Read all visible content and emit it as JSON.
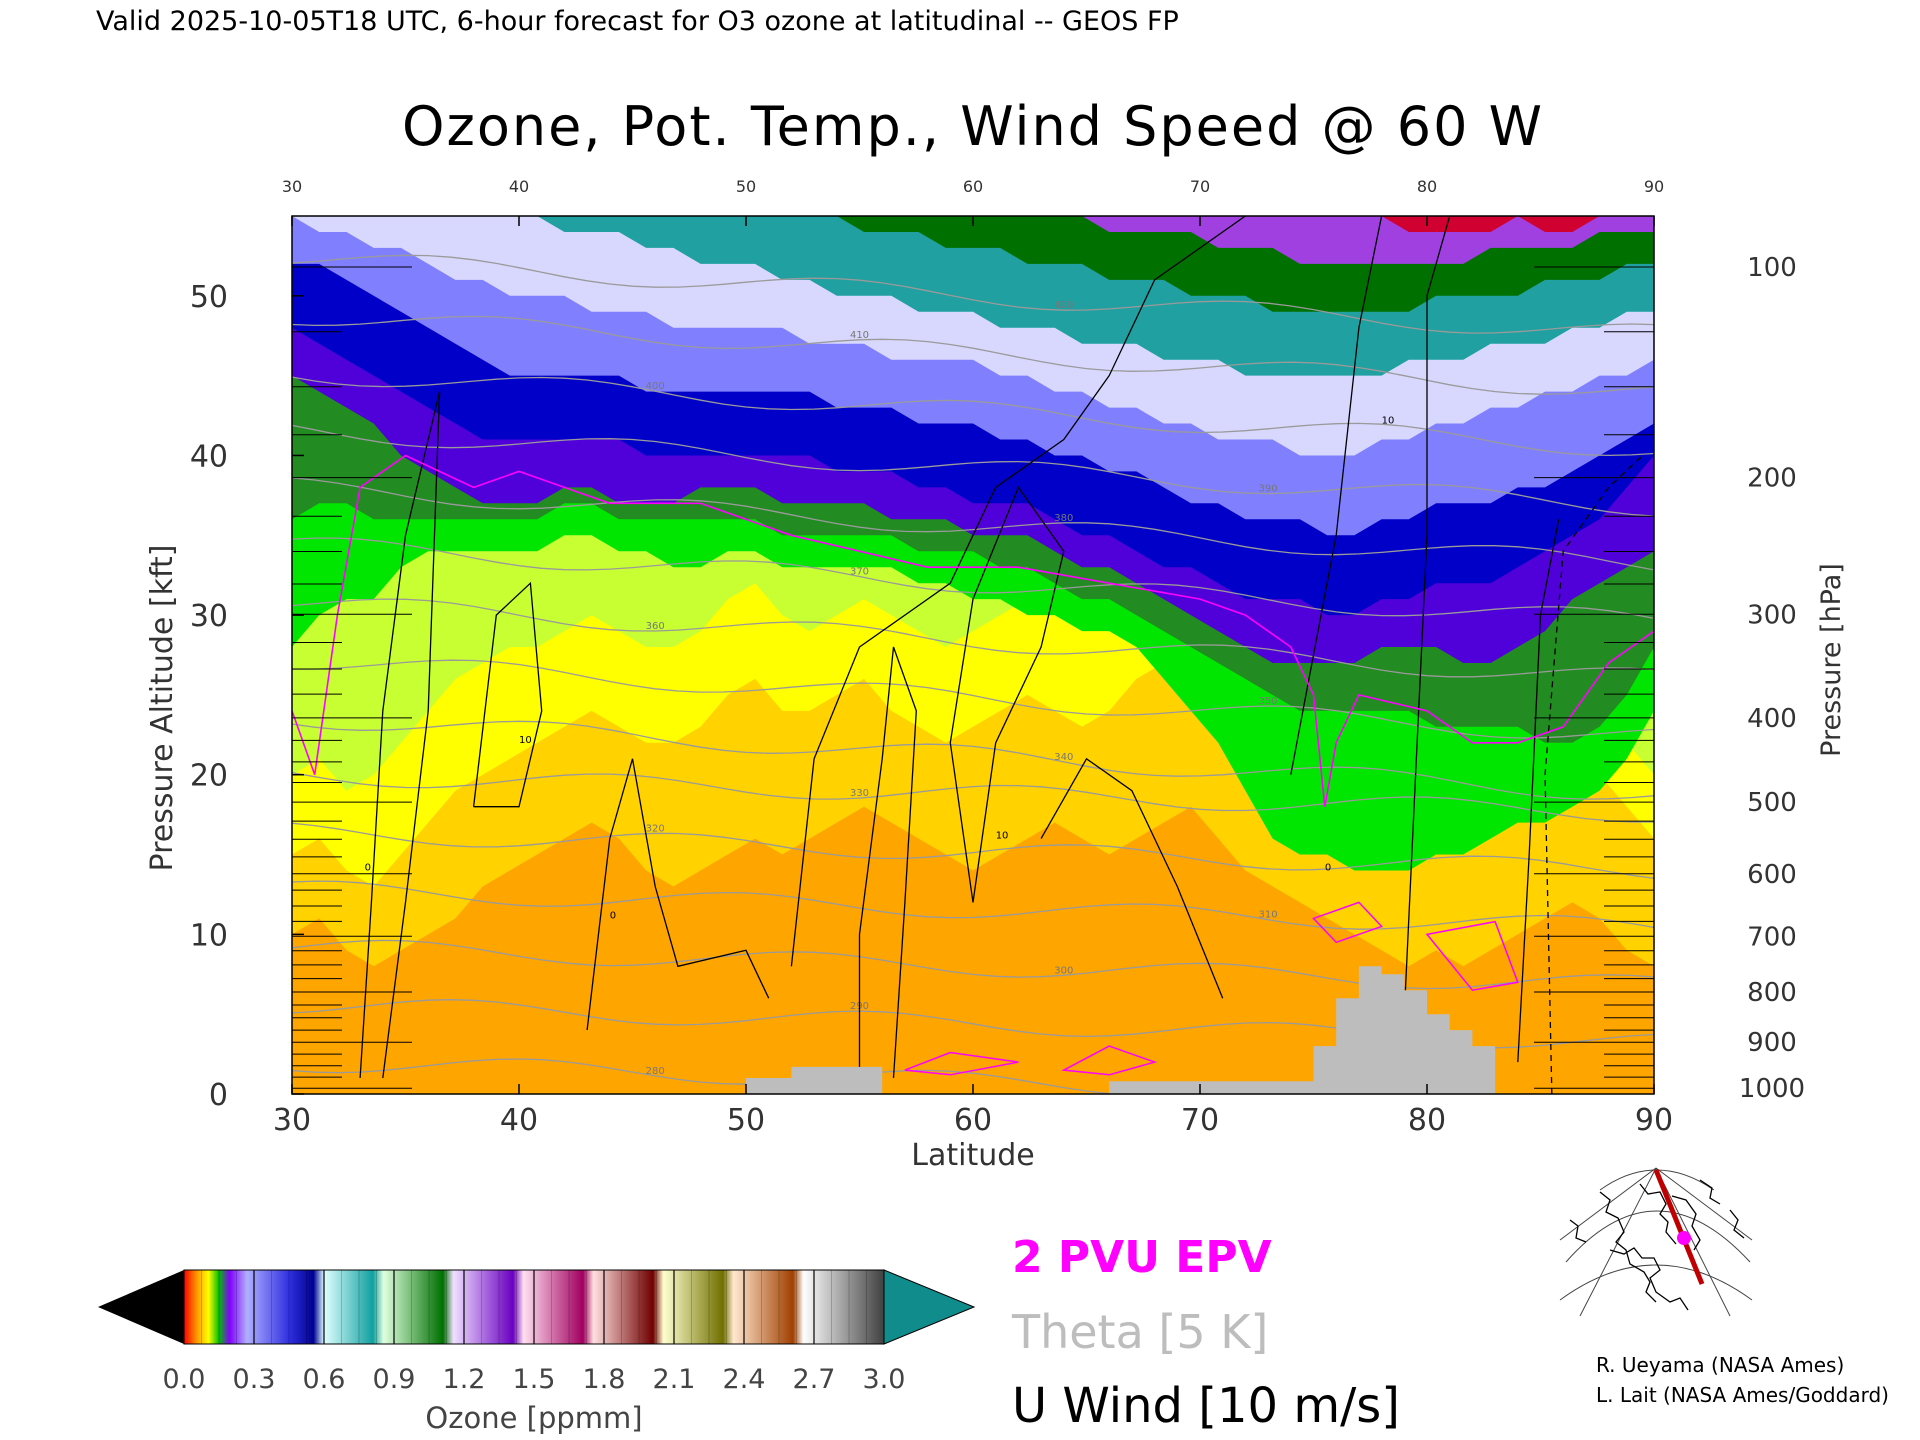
{
  "header": {
    "valid_text": "Valid 2025-10-05T18 UTC, 6-hour forecast for O3 ozone at latitudinal -- GEOS FP"
  },
  "chart_data": {
    "type": "heatmap",
    "title": "Ozone, Pot. Temp., Wind Speed @ 60 W",
    "xlabel": "Latitude",
    "ylabel": "Pressure Altitude [kft]",
    "y2label": "Pressure [hPa]",
    "xlim": [
      30,
      90
    ],
    "ylim": [
      0,
      55
    ],
    "x_ticks": [
      30,
      40,
      50,
      60,
      70,
      80,
      90
    ],
    "top_x_ticks": [
      30,
      40,
      50,
      60,
      70,
      80,
      90
    ],
    "y_ticks": [
      0,
      10,
      20,
      30,
      40,
      50
    ],
    "pressure_ticks": [
      100,
      200,
      300,
      400,
      500,
      600,
      700,
      800,
      900,
      1000
    ],
    "ozone_colorbar": {
      "label": "Ozone [ppmm]",
      "ticks": [
        "0.0",
        "0.3",
        "0.6",
        "0.9",
        "1.2",
        "1.5",
        "1.8",
        "2.1",
        "2.4",
        "2.7",
        "3.0"
      ],
      "range": [
        0.0,
        3.0
      ]
    },
    "theta_labels": [
      "280",
      "290",
      "300",
      "310",
      "320",
      "330",
      "340",
      "350",
      "360",
      "370",
      "380",
      "390",
      "400",
      "410",
      "420"
    ],
    "wind_labels": [
      "0",
      "10"
    ],
    "ozone_bands": [
      {
        "ozone_ppmm": 0.08,
        "color": "#ffa500",
        "profile": [
          4,
          5,
          3,
          4,
          5,
          6,
          4,
          3,
          4,
          5,
          4,
          3,
          4,
          5,
          6,
          5,
          4,
          5,
          6,
          7,
          6,
          5,
          4,
          3,
          4,
          5,
          6,
          5,
          6,
          7,
          8,
          9,
          10,
          11,
          12,
          13,
          11,
          9,
          7,
          6,
          5,
          4,
          3,
          4,
          3,
          4,
          3,
          2,
          3,
          4,
          3
        ]
      },
      {
        "ozone_ppmm": 0.05,
        "color": "#ffd200",
        "profile": [
          10,
          11,
          9,
          8,
          9,
          10,
          11,
          13,
          14,
          15,
          16,
          17,
          16,
          14,
          13,
          14,
          15,
          16,
          15,
          16,
          17,
          18,
          17,
          16,
          15,
          14,
          15,
          16,
          17,
          16,
          15,
          16,
          17,
          18,
          16,
          14,
          13,
          12,
          11,
          10,
          9,
          8,
          9,
          8,
          9,
          10,
          11,
          12,
          11,
          9,
          8
        ]
      },
      {
        "ozone_ppmm": 0.035,
        "color": "#ffff00",
        "profile": [
          15,
          16,
          14,
          13,
          15,
          17,
          19,
          20,
          21,
          22,
          23,
          24,
          23,
          22,
          22,
          23,
          25,
          26,
          24,
          24,
          25,
          26,
          24,
          23,
          22,
          23,
          24,
          25,
          24,
          23,
          24,
          26,
          27,
          26,
          24,
          22,
          20,
          18,
          17,
          16,
          15,
          14,
          16,
          17,
          18,
          20,
          21,
          22,
          20,
          18,
          16
        ]
      },
      {
        "ozone_ppmm": 0.02,
        "color": "#c8ff32",
        "profile": [
          20,
          21,
          19,
          20,
          22,
          24,
          26,
          27,
          28,
          28,
          29,
          30,
          29,
          28,
          28,
          29,
          31,
          32,
          30,
          29,
          30,
          31,
          30,
          29,
          28,
          29,
          30,
          31,
          30,
          29,
          30,
          31,
          32,
          31,
          29,
          27,
          25,
          22,
          21,
          20,
          19,
          18,
          20,
          21,
          22,
          24,
          25,
          26,
          24,
          22,
          20
        ]
      },
      {
        "ozone_ppmm": 0.015,
        "color": "#00e600",
        "profile": [
          28,
          30,
          31,
          31,
          33,
          34,
          34,
          34,
          34,
          34,
          35,
          35,
          34,
          34,
          33,
          33,
          34,
          34,
          33,
          33,
          33,
          33,
          33,
          32,
          32,
          31,
          31,
          30,
          30,
          29,
          29,
          28,
          26,
          24,
          22,
          19,
          16,
          15,
          15,
          14,
          14,
          14,
          15,
          15,
          16,
          17,
          17,
          18,
          19,
          21,
          24
        ]
      },
      {
        "ozone_ppmm": 0.012,
        "color": "#228b22",
        "profile": [
          36,
          37,
          37,
          36,
          36,
          36,
          36,
          36,
          36,
          36,
          37,
          37,
          36,
          36,
          36,
          36,
          36,
          36,
          35,
          35,
          35,
          35,
          35,
          34,
          34,
          34,
          33,
          33,
          32,
          31,
          31,
          30,
          29,
          28,
          27,
          26,
          25,
          24,
          24,
          24,
          24,
          24,
          23,
          23,
          23,
          23,
          22,
          22,
          23,
          25,
          28
        ]
      },
      {
        "ozone_ppmm": 0.1,
        "color": "#5000d8",
        "profile": [
          45,
          44,
          43,
          42,
          40,
          39,
          38,
          37,
          37,
          37,
          38,
          38,
          37,
          37,
          37,
          38,
          38,
          38,
          37,
          37,
          37,
          37,
          36,
          36,
          36,
          35,
          35,
          35,
          34,
          33,
          33,
          32,
          31,
          30,
          29,
          28,
          27,
          27,
          27,
          27,
          28,
          28,
          28,
          27,
          27,
          28,
          29,
          31,
          32,
          33,
          34
        ]
      },
      {
        "ozone_ppmm": 0.25,
        "color": "#0000c8",
        "profile": [
          48,
          47,
          46,
          45,
          44,
          43,
          42,
          41,
          41,
          41,
          41,
          41,
          41,
          40,
          40,
          40,
          40,
          40,
          40,
          40,
          39,
          39,
          39,
          38,
          38,
          37,
          37,
          37,
          36,
          35,
          35,
          34,
          33,
          33,
          32,
          31,
          31,
          31,
          30,
          30,
          31,
          31,
          32,
          32,
          32,
          33,
          34,
          35,
          36,
          38,
          40
        ]
      },
      {
        "ozone_ppmm": 0.4,
        "color": "#8080ff",
        "profile": [
          52,
          52,
          51,
          50,
          49,
          48,
          47,
          46,
          45,
          45,
          45,
          45,
          45,
          44,
          44,
          44,
          44,
          44,
          44,
          44,
          43,
          43,
          43,
          42,
          42,
          42,
          41,
          41,
          40,
          40,
          39,
          39,
          38,
          37,
          37,
          36,
          36,
          36,
          35,
          35,
          36,
          36,
          37,
          37,
          37,
          38,
          38,
          39,
          40,
          41,
          42
        ]
      },
      {
        "ozone_ppmm": 0.55,
        "color": "#d8d8ff",
        "profile": [
          55,
          54,
          54,
          53,
          53,
          52,
          51,
          51,
          50,
          50,
          50,
          49,
          49,
          49,
          48,
          48,
          48,
          48,
          48,
          47,
          47,
          47,
          46,
          46,
          46,
          46,
          45,
          45,
          44,
          44,
          43,
          43,
          42,
          42,
          41,
          41,
          41,
          40,
          40,
          40,
          41,
          41,
          42,
          42,
          43,
          43,
          44,
          44,
          45,
          45,
          46
        ]
      },
      {
        "ozone_ppmm": 0.75,
        "color": "#20a0a0",
        "profile": [
          55,
          55,
          55,
          55,
          55,
          55,
          55,
          55,
          55,
          55,
          54,
          54,
          54,
          53,
          53,
          52,
          52,
          52,
          51,
          51,
          50,
          50,
          50,
          49,
          49,
          49,
          48,
          48,
          48,
          47,
          47,
          47,
          46,
          46,
          46,
          45,
          45,
          45,
          45,
          45,
          45,
          46,
          46,
          46,
          47,
          47,
          47,
          48,
          48,
          49,
          49
        ]
      },
      {
        "ozone_ppmm": 1.0,
        "color": "#007000",
        "profile": [
          55,
          55,
          55,
          55,
          55,
          55,
          55,
          55,
          55,
          55,
          55,
          55,
          55,
          55,
          55,
          55,
          55,
          55,
          55,
          55,
          55,
          54,
          54,
          54,
          53,
          53,
          53,
          52,
          52,
          52,
          51,
          51,
          51,
          50,
          50,
          50,
          49,
          49,
          49,
          49,
          49,
          49,
          50,
          50,
          50,
          50,
          51,
          51,
          51,
          52,
          52
        ]
      },
      {
        "ozone_ppmm": 1.4,
        "color": "#a040e0",
        "profile": [
          55,
          55,
          55,
          55,
          55,
          55,
          55,
          55,
          55,
          55,
          55,
          55,
          55,
          55,
          55,
          55,
          55,
          55,
          55,
          55,
          55,
          55,
          55,
          55,
          55,
          55,
          55,
          55,
          55,
          55,
          54,
          54,
          54,
          54,
          53,
          53,
          53,
          52,
          52,
          52,
          52,
          52,
          52,
          52,
          53,
          53,
          53,
          53,
          54,
          54,
          54
        ]
      },
      {
        "ozone_ppmm": 1.9,
        "color": "#d00030",
        "profile": [
          55,
          55,
          55,
          55,
          55,
          55,
          55,
          55,
          55,
          55,
          55,
          55,
          55,
          55,
          55,
          55,
          55,
          55,
          55,
          55,
          55,
          55,
          55,
          55,
          55,
          55,
          55,
          55,
          55,
          55,
          55,
          55,
          55,
          55,
          55,
          55,
          55,
          55,
          55,
          55,
          55,
          54,
          54,
          54,
          54,
          55,
          54,
          54,
          55,
          55,
          55
        ]
      },
      {
        "ozone_ppmm": 2.4,
        "color": "#e8c000",
        "profile": [
          55,
          55,
          55,
          55,
          55,
          55,
          55,
          55,
          55,
          55,
          55,
          55,
          55,
          55,
          55,
          55,
          55,
          55,
          55,
          55,
          55,
          55,
          55,
          55,
          55,
          55,
          55,
          55,
          55,
          55,
          55,
          55,
          55,
          55,
          55,
          55,
          55,
          55,
          55,
          55,
          55,
          55,
          55,
          55,
          55,
          55,
          55,
          55,
          55,
          55,
          55
        ]
      }
    ],
    "terrain_kft": [
      [
        50,
        0.0
      ],
      [
        50,
        1.0
      ],
      [
        52,
        1.0
      ],
      [
        52,
        1.7
      ],
      [
        56,
        1.7
      ],
      [
        56,
        0.0
      ],
      [
        66,
        0.0
      ],
      [
        66,
        0.8
      ],
      [
        75,
        0.8
      ],
      [
        75,
        3.0
      ],
      [
        76,
        3.0
      ],
      [
        76,
        6.0
      ],
      [
        77,
        6.0
      ],
      [
        77,
        8.0
      ],
      [
        78,
        8.0
      ],
      [
        78,
        7.5
      ],
      [
        79,
        7.5
      ],
      [
        79,
        6.5
      ],
      [
        80,
        6.5
      ],
      [
        80,
        5.0
      ],
      [
        81,
        5.0
      ],
      [
        81,
        4.0
      ],
      [
        82,
        4.0
      ],
      [
        82,
        3.0
      ],
      [
        83,
        3.0
      ],
      [
        83,
        0.0
      ]
    ]
  },
  "legend": {
    "epv_label": "2 PVU EPV",
    "theta_label": "Theta [5 K]",
    "wind_label": "U Wind [10 m/s]",
    "epv_color": "#ff00ff",
    "theta_color": "#bdbdbd",
    "wind_color": "#000000"
  },
  "credits": {
    "line1": "R. Ueyama (NASA Ames)",
    "line2": "L. Lait (NASA Ames/Goddard)"
  },
  "inset_map": {
    "marker_color": "#ff00ff",
    "track_color": "#c00000"
  }
}
